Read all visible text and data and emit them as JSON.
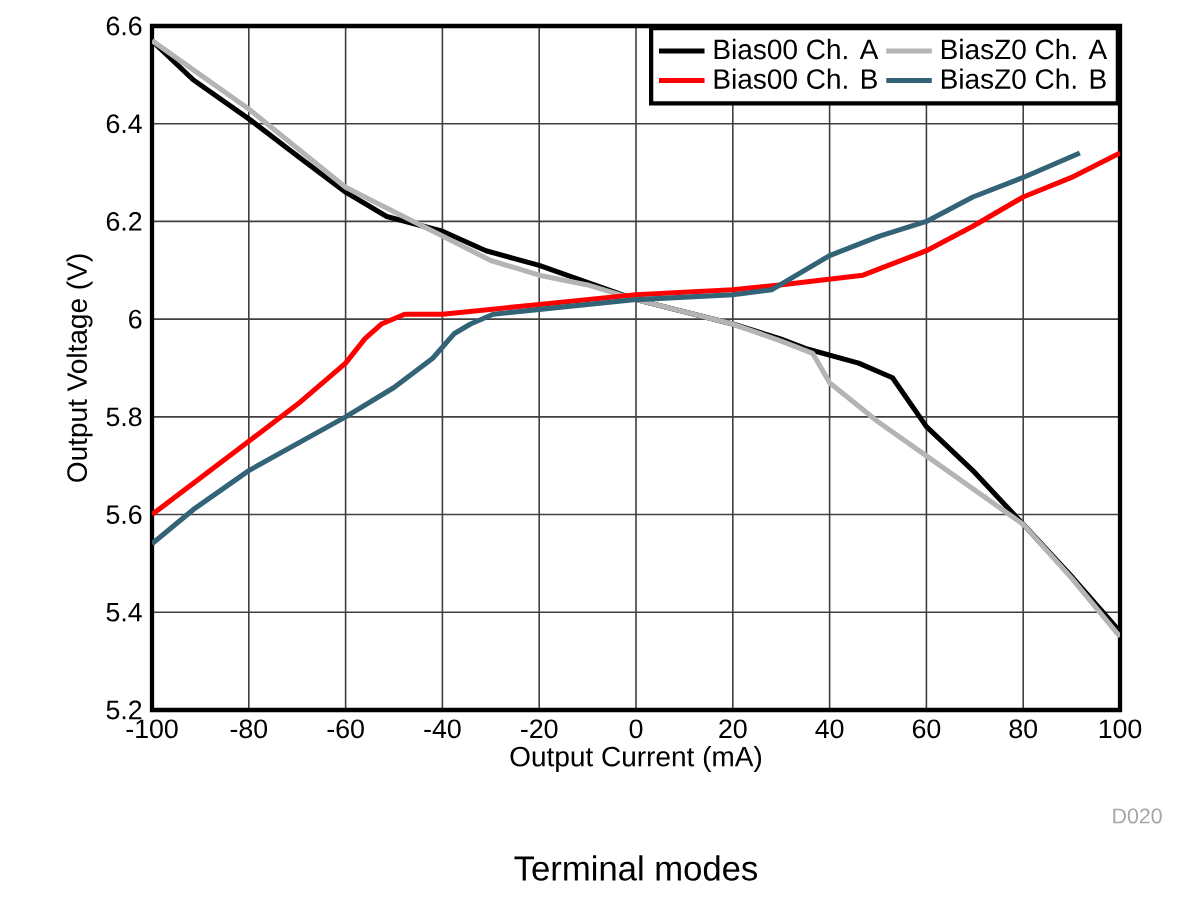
{
  "chart_data": {
    "type": "line",
    "title": "Terminal modes",
    "xlabel": "Output Current (mA)",
    "ylabel": "Output Voltage (V)",
    "annotations": [
      "D020"
    ],
    "xlim": [
      -100,
      100
    ],
    "ylim": [
      5.2,
      6.6
    ],
    "xticks": [
      -100,
      -80,
      -60,
      -40,
      -20,
      0,
      20,
      40,
      60,
      80,
      100
    ],
    "yticks": [
      5.2,
      5.4,
      5.6,
      5.8,
      6,
      6.2,
      6.4,
      6.6
    ],
    "grid": true,
    "legend": "top right",
    "marker": "none",
    "line_style": "solid",
    "series": [
      {
        "name": "Bias00 Ch. A",
        "color": "#000000",
        "x": [
          -100,
          -91.5,
          -80,
          -69.4,
          -60,
          -51.5,
          -40,
          -31,
          -20,
          0,
          20,
          29.7,
          35,
          46,
          53,
          60,
          69.6,
          80,
          90.3,
          100
        ],
        "values": [
          6.57,
          6.49,
          6.41,
          6.33,
          6.26,
          6.21,
          6.18,
          6.14,
          6.11,
          6.04,
          5.99,
          5.96,
          5.94,
          5.91,
          5.88,
          5.78,
          5.69,
          5.58,
          5.47,
          5.36
        ]
      },
      {
        "name": "BiasZ0 Ch. A",
        "color": "#b4b4b4",
        "x": [
          -100,
          -90,
          -80,
          -70,
          -60,
          -50,
          -40,
          -30,
          -20,
          -10,
          0,
          20,
          30,
          36.5,
          40,
          50,
          60,
          70,
          80,
          90,
          100
        ],
        "values": [
          6.57,
          6.5,
          6.43,
          6.35,
          6.27,
          6.22,
          6.17,
          6.12,
          6.09,
          6.07,
          6.04,
          5.99,
          5.955,
          5.93,
          5.87,
          5.79,
          5.72,
          5.65,
          5.58,
          5.47,
          5.35
        ]
      },
      {
        "name": "Bias00 Ch. B",
        "color": "#ff0000",
        "x": [
          -100,
          -80,
          -69.4,
          -60,
          -56,
          -52.6,
          -47.8,
          -40,
          -20,
          0,
          20,
          29.7,
          46.9,
          60,
          69.6,
          80,
          90,
          100
        ],
        "values": [
          5.6,
          5.75,
          5.83,
          5.91,
          5.96,
          5.99,
          6.01,
          6.01,
          6.03,
          6.05,
          6.06,
          6.07,
          6.09,
          6.14,
          6.19,
          6.25,
          6.29,
          6.34
        ]
      },
      {
        "name": "BiasZ0 Ch. B",
        "color": "#336377",
        "x": [
          -100,
          -91.5,
          -80,
          -60,
          -50,
          -42,
          -37.6,
          -34.2,
          -29.5,
          -20,
          0,
          20,
          28,
          40,
          50.3,
          60,
          69.6,
          80,
          91.7
        ],
        "values": [
          5.54,
          5.61,
          5.69,
          5.8,
          5.86,
          5.92,
          5.97,
          5.99,
          6.01,
          6.02,
          6.04,
          6.05,
          6.06,
          6.13,
          6.17,
          6.2,
          6.25,
          6.29,
          6.34
        ]
      }
    ]
  }
}
